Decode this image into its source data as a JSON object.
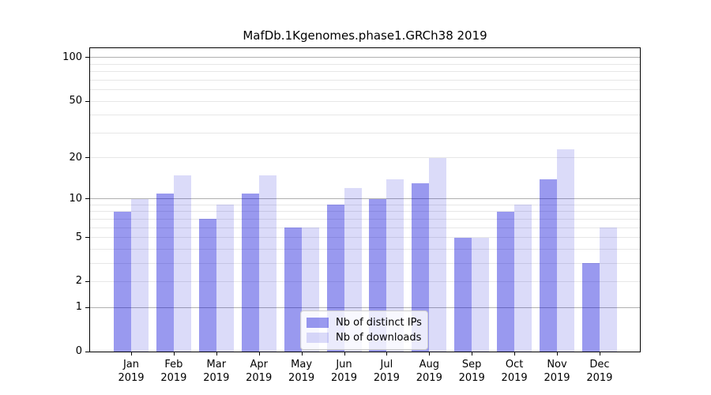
{
  "title": "MafDb.1Kgenomes.phase1.GRCh38 2019",
  "chart_data": {
    "type": "bar",
    "title": "MafDb.1Kgenomes.phase1.GRCh38 2019",
    "xlabel": "",
    "ylabel": "",
    "yscale": "log1p",
    "grid": true,
    "categories": [
      "Jan 2019",
      "Feb 2019",
      "Mar 2019",
      "Apr 2019",
      "May 2019",
      "Jun 2019",
      "Jul 2019",
      "Aug 2019",
      "Sep 2019",
      "Oct 2019",
      "Nov 2019",
      "Dec 2019"
    ],
    "series": [
      {
        "name": "Nb of distinct IPs",
        "color": "rgba(0,0,215,0.40)",
        "values": [
          8,
          11,
          7,
          11,
          6,
          9,
          10,
          13,
          5,
          8,
          14,
          3
        ]
      },
      {
        "name": "Nb of downloads",
        "color": "rgba(0,0,215,0.14)",
        "values": [
          10,
          15,
          9,
          15,
          6,
          12,
          14,
          20,
          5,
          9,
          23,
          6
        ]
      }
    ],
    "y_axis": {
      "tick_labels": [
        "100",
        "50",
        "20",
        "10",
        "5",
        "2",
        "1",
        "0"
      ],
      "tick_values": [
        100,
        50,
        20,
        10,
        5,
        2,
        1,
        0
      ],
      "major_gridlines": [
        100,
        10,
        1
      ],
      "minor_gridlines": [
        90,
        80,
        70,
        60,
        50,
        40,
        30,
        20,
        9,
        8,
        7,
        6,
        5,
        4,
        3,
        2
      ],
      "range": [
        0,
        115
      ]
    },
    "legend": {
      "position": "lower center",
      "entries": [
        "Nb of distinct IPs",
        "Nb of downloads"
      ]
    }
  },
  "colors": {
    "bar_distinct_ips": "rgba(0,0,215,0.40)",
    "bar_downloads": "rgba(0,0,215,0.14)",
    "major_gridline": "#b0b0b0",
    "minor_gridline": "#e7e7e7",
    "axis": "#000000",
    "legend_border": "#cccccc",
    "background": "#ffffff"
  }
}
